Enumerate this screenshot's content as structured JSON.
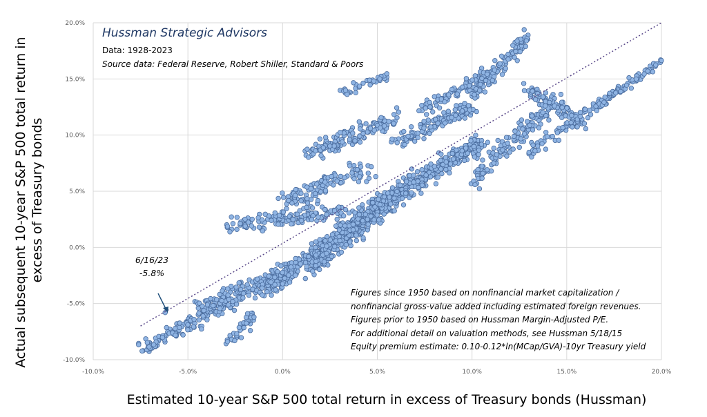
{
  "header": {
    "title": "Hussman Strategic Advisors",
    "data_range": "Data: 1928-2023",
    "source": "Source data: Federal Reserve, Robert Shiller, Standard & Poors"
  },
  "notes": [
    "Figures since 1950 based on nonfinancial market capitalization /",
    "nonfinancial gross-value added including estimated foreign revenues.",
    "Figures prior to 1950 based on Hussman Margin-Adjusted P/E.",
    "For additional detail on valuation methods, see Hussman 5/18/15",
    "Equity premium estimate: 0.10-0.12*ln(MCap/GVA)-10yr Treasury yield"
  ],
  "annotation": {
    "date": "6/16/23",
    "value": "-5.8%"
  },
  "colors": {
    "point_fill": "#8fb4e3",
    "point_stroke": "#4a6c9e",
    "trend": "#5b4a8a",
    "grid": "#d9d9d9"
  },
  "chart_data": {
    "type": "scatter",
    "xlabel": "Estimated 10-year S&P 500 total return in excess of Treasury bonds (Hussman)",
    "ylabel": "Actual subsequent 10-year S&P 500 total return in excess of Treasury bonds",
    "xlim": [
      -10,
      20
    ],
    "ylim": [
      -10,
      20
    ],
    "x_ticks": [
      "-10.0%",
      "-5.0%",
      "0.0%",
      "5.0%",
      "10.0%",
      "15.0%",
      "20.0%"
    ],
    "y_ticks": [
      "-10.0%",
      "-5.0%",
      "0.0%",
      "5.0%",
      "10.0%",
      "15.0%",
      "20.0%"
    ],
    "grid": true,
    "trendline": {
      "style": "dotted",
      "from": [
        -7.5,
        -7.0
      ],
      "to": [
        20,
        20
      ]
    },
    "highlight_point": {
      "x": -6.2,
      "y": -5.8,
      "label": "6/16/23 -5.8%"
    },
    "clusters": [
      {
        "x0": -7.4,
        "y0": -9.0,
        "x1": -2.0,
        "y1": -4.2,
        "spread": 0.7,
        "count": 160
      },
      {
        "x0": -4.5,
        "y0": -5.5,
        "x1": 0.5,
        "y1": -2.0,
        "spread": 0.8,
        "count": 110
      },
      {
        "x0": -3.0,
        "y0": -8.5,
        "x1": -1.5,
        "y1": -6.0,
        "spread": 0.5,
        "count": 40
      },
      {
        "x0": -2.8,
        "y0": 1.8,
        "x1": 3.2,
        "y1": 3.3,
        "spread": 0.7,
        "count": 140
      },
      {
        "x0": -1.0,
        "y0": -4.0,
        "x1": 2.5,
        "y1": 0.5,
        "spread": 0.9,
        "count": 190
      },
      {
        "x0": 0.0,
        "y0": 4.0,
        "x1": 4.5,
        "y1": 7.0,
        "spread": 0.8,
        "count": 110
      },
      {
        "x0": 1.5,
        "y0": -1.5,
        "x1": 6.0,
        "y1": 4.5,
        "spread": 0.9,
        "count": 320
      },
      {
        "x0": 3.0,
        "y0": 1.5,
        "x1": 10.5,
        "y1": 9.5,
        "spread": 0.9,
        "count": 420
      },
      {
        "x0": 1.5,
        "y0": 8.5,
        "x1": 6.0,
        "y1": 11.5,
        "spread": 0.8,
        "count": 150
      },
      {
        "x0": 3.0,
        "y0": 13.8,
        "x1": 5.5,
        "y1": 15.2,
        "spread": 0.4,
        "count": 35
      },
      {
        "x0": 6.0,
        "y0": 9.5,
        "x1": 10.0,
        "y1": 12.5,
        "spread": 0.7,
        "count": 130
      },
      {
        "x0": 7.5,
        "y0": 12.5,
        "x1": 11.0,
        "y1": 15.5,
        "spread": 0.6,
        "count": 90
      },
      {
        "x0": 10.0,
        "y0": 13.5,
        "x1": 13.0,
        "y1": 19.0,
        "spread": 0.6,
        "count": 120
      },
      {
        "x0": 10.0,
        "y0": 6.0,
        "x1": 14.5,
        "y1": 13.5,
        "spread": 0.8,
        "count": 140
      },
      {
        "x0": 13.0,
        "y0": 14.0,
        "x1": 16.0,
        "y1": 11.0,
        "spread": 0.6,
        "count": 90
      },
      {
        "x0": 16.0,
        "y0": 12.0,
        "x1": 20.0,
        "y1": 16.5,
        "spread": 0.4,
        "count": 90
      },
      {
        "x0": 13.0,
        "y0": 8.5,
        "x1": 16.0,
        "y1": 12.0,
        "spread": 0.5,
        "count": 50
      }
    ]
  }
}
